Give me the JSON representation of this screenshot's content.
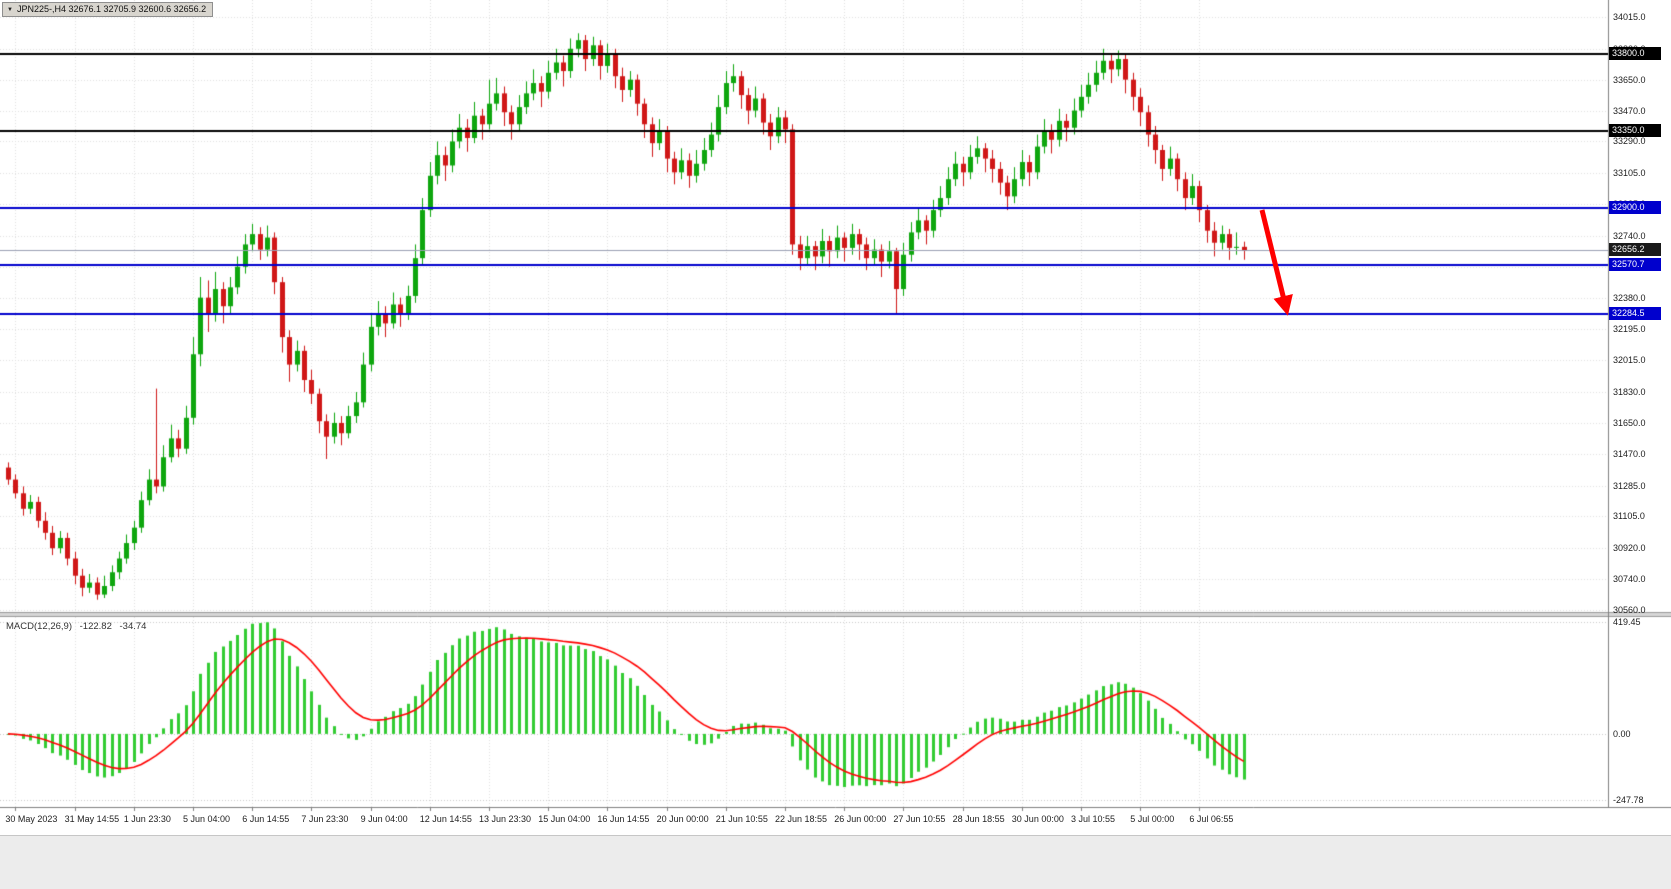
{
  "header": {
    "symbol_info": "JPN225-,H4  32676.1 32705.9 32600.6 32656.2"
  },
  "chart_data": {
    "type": "candlestick",
    "symbol": "JPN225-",
    "timeframe": "H4",
    "current_bar": {
      "open": 32676.1,
      "high": 32705.9,
      "low": 32600.6,
      "close": 32656.2
    },
    "y_axis_ticks": [
      34015,
      33830,
      33650,
      33470,
      33290,
      33105,
      32925,
      32740,
      32560,
      32380,
      32195,
      32015,
      31830,
      31650,
      31470,
      31285,
      31105,
      30920,
      30740,
      30560
    ],
    "x_axis_labels": [
      "30 May 2023",
      "31 May 14:55",
      "1 Jun 23:30",
      "5 Jun 04:00",
      "6 Jun 14:55",
      "7 Jun 23:30",
      "9 Jun 04:00",
      "12 Jun 14:55",
      "13 Jun 23:30",
      "15 Jun 04:00",
      "16 Jun 14:55",
      "20 Jun 00:00",
      "21 Jun 10:55",
      "22 Jun 18:55",
      "26 Jun 00:00",
      "27 Jun 10:55",
      "28 Jun 18:55",
      "30 Jun 00:00",
      "3 Jul 10:55",
      "5 Jul 00:00",
      "6 Jul 06:55"
    ],
    "levels": [
      {
        "value": 33800.0,
        "color": "#000000"
      },
      {
        "value": 33350.0,
        "color": "#000000"
      },
      {
        "value": 32900.0,
        "color": "#0000cd"
      },
      {
        "value": 32570.7,
        "color": "#0000cd"
      },
      {
        "value": 32284.5,
        "color": "#0000cd"
      }
    ],
    "current_price": {
      "value": 32656.2,
      "label": "32656.2"
    },
    "candles": [
      [
        31390,
        31420,
        31290,
        31320
      ],
      [
        31320,
        31350,
        31210,
        31240
      ],
      [
        31240,
        31280,
        31110,
        31150
      ],
      [
        31150,
        31230,
        31120,
        31190
      ],
      [
        31190,
        31220,
        31040,
        31080
      ],
      [
        31080,
        31130,
        30970,
        31010
      ],
      [
        31010,
        31050,
        30880,
        30920
      ],
      [
        30920,
        31020,
        30890,
        30980
      ],
      [
        30980,
        31010,
        30820,
        30860
      ],
      [
        30860,
        30900,
        30710,
        30760
      ],
      [
        30760,
        30800,
        30640,
        30690
      ],
      [
        30690,
        30770,
        30660,
        30720
      ],
      [
        30720,
        30750,
        30620,
        30650
      ],
      [
        30650,
        30760,
        30630,
        30700
      ],
      [
        30700,
        30820,
        30670,
        30780
      ],
      [
        30780,
        30900,
        30740,
        30860
      ],
      [
        30860,
        31000,
        30830,
        30950
      ],
      [
        30950,
        31080,
        30910,
        31040
      ],
      [
        31040,
        31250,
        31010,
        31200
      ],
      [
        31200,
        31380,
        31170,
        31320
      ],
      [
        31320,
        31850,
        31240,
        31280
      ],
      [
        31280,
        31520,
        31250,
        31450
      ],
      [
        31450,
        31640,
        31420,
        31560
      ],
      [
        31560,
        31610,
        31450,
        31500
      ],
      [
        31500,
        31750,
        31470,
        31680
      ],
      [
        31680,
        32150,
        31640,
        32050
      ],
      [
        32050,
        32500,
        31980,
        32380
      ],
      [
        32380,
        32480,
        32180,
        32290
      ],
      [
        32290,
        32530,
        32240,
        32430
      ],
      [
        32430,
        32470,
        32230,
        32330
      ],
      [
        32330,
        32500,
        32290,
        32440
      ],
      [
        32440,
        32620,
        32400,
        32560
      ],
      [
        32560,
        32750,
        32520,
        32690
      ],
      [
        32690,
        32810,
        32650,
        32750
      ],
      [
        32750,
        32790,
        32600,
        32660
      ],
      [
        32660,
        32800,
        32620,
        32730
      ],
      [
        32730,
        32760,
        32400,
        32470
      ],
      [
        32470,
        32500,
        32060,
        32150
      ],
      [
        32150,
        32190,
        31890,
        31990
      ],
      [
        31990,
        32130,
        31950,
        32070
      ],
      [
        32070,
        32100,
        31830,
        31900
      ],
      [
        31900,
        31960,
        31760,
        31820
      ],
      [
        31820,
        31850,
        31590,
        31660
      ],
      [
        31660,
        31700,
        31440,
        31570
      ],
      [
        31570,
        31710,
        31530,
        31650
      ],
      [
        31650,
        31690,
        31520,
        31590
      ],
      [
        31590,
        31750,
        31560,
        31690
      ],
      [
        31690,
        31830,
        31650,
        31770
      ],
      [
        31770,
        32060,
        31740,
        31990
      ],
      [
        31990,
        32290,
        31950,
        32210
      ],
      [
        32210,
        32360,
        32160,
        32290
      ],
      [
        32290,
        32330,
        32150,
        32230
      ],
      [
        32230,
        32410,
        32200,
        32340
      ],
      [
        32340,
        32380,
        32210,
        32290
      ],
      [
        32290,
        32450,
        32250,
        32390
      ],
      [
        32390,
        32690,
        32350,
        32610
      ],
      [
        32610,
        32960,
        32570,
        32890
      ],
      [
        32890,
        33170,
        32850,
        33090
      ],
      [
        33090,
        33290,
        33040,
        33210
      ],
      [
        33210,
        33260,
        33060,
        33150
      ],
      [
        33150,
        33360,
        33110,
        33290
      ],
      [
        33290,
        33450,
        33250,
        33370
      ],
      [
        33370,
        33420,
        33230,
        33310
      ],
      [
        33310,
        33520,
        33280,
        33440
      ],
      [
        33440,
        33480,
        33300,
        33390
      ],
      [
        33390,
        33650,
        33360,
        33510
      ],
      [
        33510,
        33660,
        33470,
        33570
      ],
      [
        33570,
        33610,
        33380,
        33460
      ],
      [
        33460,
        33500,
        33300,
        33390
      ],
      [
        33390,
        33560,
        33350,
        33490
      ],
      [
        33490,
        33640,
        33450,
        33570
      ],
      [
        33570,
        33710,
        33530,
        33630
      ],
      [
        33630,
        33670,
        33490,
        33580
      ],
      [
        33580,
        33760,
        33540,
        33690
      ],
      [
        33690,
        33830,
        33650,
        33750
      ],
      [
        33750,
        33790,
        33610,
        33700
      ],
      [
        33700,
        33890,
        33660,
        33830
      ],
      [
        33830,
        33920,
        33780,
        33880
      ],
      [
        33880,
        33910,
        33700,
        33770
      ],
      [
        33770,
        33900,
        33730,
        33850
      ],
      [
        33850,
        33880,
        33650,
        33730
      ],
      [
        33730,
        33860,
        33690,
        33800
      ],
      [
        33800,
        33830,
        33600,
        33670
      ],
      [
        33670,
        33720,
        33520,
        33590
      ],
      [
        33590,
        33700,
        33550,
        33650
      ],
      [
        33650,
        33680,
        33440,
        33510
      ],
      [
        33510,
        33540,
        33310,
        33390
      ],
      [
        33390,
        33430,
        33200,
        33280
      ],
      [
        33280,
        33420,
        33240,
        33350
      ],
      [
        33350,
        33380,
        33110,
        33190
      ],
      [
        33190,
        33230,
        33040,
        33110
      ],
      [
        33110,
        33250,
        33070,
        33180
      ],
      [
        33180,
        33220,
        33020,
        33090
      ],
      [
        33090,
        33240,
        33050,
        33160
      ],
      [
        33160,
        33310,
        33120,
        33240
      ],
      [
        33240,
        33400,
        33200,
        33330
      ],
      [
        33330,
        33560,
        33290,
        33490
      ],
      [
        33490,
        33700,
        33450,
        33630
      ],
      [
        33630,
        33740,
        33580,
        33670
      ],
      [
        33670,
        33700,
        33480,
        33560
      ],
      [
        33560,
        33600,
        33390,
        33470
      ],
      [
        33470,
        33610,
        33430,
        33540
      ],
      [
        33540,
        33570,
        33330,
        33400
      ],
      [
        33400,
        33450,
        33240,
        33320
      ],
      [
        33320,
        33490,
        33280,
        33430
      ],
      [
        33430,
        33470,
        33280,
        33360
      ],
      [
        33360,
        33390,
        32630,
        32690
      ],
      [
        32690,
        32740,
        32540,
        32610
      ],
      [
        32610,
        32740,
        32570,
        32680
      ],
      [
        32680,
        32710,
        32540,
        32620
      ],
      [
        32620,
        32780,
        32580,
        32710
      ],
      [
        32710,
        32740,
        32560,
        32650
      ],
      [
        32650,
        32800,
        32610,
        32730
      ],
      [
        32730,
        32760,
        32590,
        32670
      ],
      [
        32670,
        32810,
        32630,
        32750
      ],
      [
        32750,
        32780,
        32600,
        32690
      ],
      [
        32690,
        32730,
        32540,
        32610
      ],
      [
        32610,
        32720,
        32570,
        32660
      ],
      [
        32660,
        32690,
        32500,
        32590
      ],
      [
        32590,
        32710,
        32550,
        32650
      ],
      [
        32650,
        32670,
        32280,
        32430
      ],
      [
        32430,
        32700,
        32390,
        32630
      ],
      [
        32630,
        32820,
        32590,
        32760
      ],
      [
        32760,
        32900,
        32720,
        32830
      ],
      [
        32830,
        32860,
        32690,
        32770
      ],
      [
        32770,
        32950,
        32730,
        32890
      ],
      [
        32890,
        33030,
        32850,
        32960
      ],
      [
        32960,
        33140,
        32920,
        33070
      ],
      [
        33070,
        33230,
        33030,
        33160
      ],
      [
        33160,
        33200,
        33030,
        33110
      ],
      [
        33110,
        33270,
        33070,
        33200
      ],
      [
        33200,
        33320,
        33160,
        33250
      ],
      [
        33250,
        33280,
        33110,
        33190
      ],
      [
        33190,
        33240,
        33050,
        33130
      ],
      [
        33130,
        33170,
        32980,
        33050
      ],
      [
        33050,
        33090,
        32890,
        32970
      ],
      [
        32970,
        33140,
        32930,
        33070
      ],
      [
        33070,
        33240,
        33030,
        33170
      ],
      [
        33170,
        33210,
        33030,
        33110
      ],
      [
        33110,
        33330,
        33070,
        33260
      ],
      [
        33260,
        33420,
        33220,
        33350
      ],
      [
        33350,
        33390,
        33220,
        33300
      ],
      [
        33300,
        33480,
        33260,
        33410
      ],
      [
        33410,
        33450,
        33290,
        33370
      ],
      [
        33370,
        33540,
        33330,
        33470
      ],
      [
        33470,
        33620,
        33430,
        33550
      ],
      [
        33550,
        33690,
        33510,
        33620
      ],
      [
        33620,
        33760,
        33580,
        33690
      ],
      [
        33690,
        33830,
        33650,
        33760
      ],
      [
        33760,
        33800,
        33630,
        33710
      ],
      [
        33710,
        33820,
        33670,
        33770
      ],
      [
        33770,
        33800,
        33570,
        33650
      ],
      [
        33650,
        33690,
        33470,
        33550
      ],
      [
        33550,
        33600,
        33380,
        33460
      ],
      [
        33460,
        33500,
        33260,
        33330
      ],
      [
        33330,
        33380,
        33160,
        33240
      ],
      [
        33240,
        33270,
        33060,
        33130
      ],
      [
        33130,
        33260,
        33090,
        33190
      ],
      [
        33190,
        33220,
        33000,
        33070
      ],
      [
        33070,
        33110,
        32890,
        32960
      ],
      [
        32960,
        33100,
        32920,
        33030
      ],
      [
        33030,
        33060,
        32820,
        32890
      ],
      [
        32890,
        32920,
        32700,
        32770
      ],
      [
        32770,
        32820,
        32620,
        32700
      ],
      [
        32700,
        32800,
        32660,
        32750
      ],
      [
        32750,
        32780,
        32600,
        32670
      ],
      [
        32670,
        32760,
        32630,
        32676
      ],
      [
        32676,
        32706,
        32601,
        32656
      ]
    ],
    "macd": {
      "title": "MACD(12,26,9)",
      "value_main": "-122.82",
      "value_signal": "-34.74",
      "params": {
        "fast": 12,
        "slow": 26,
        "signal": 9
      },
      "axis_ticks": [
        "419.45",
        "0.00",
        "-247.78"
      ],
      "axis_values": [
        419.45,
        0.0,
        -247.78
      ]
    },
    "colors": {
      "background": "#ffffff",
      "grid": "#e0e0e0",
      "candle_up": "#0ea60e",
      "candle_down": "#d01717",
      "current_line": "#9aA0b4",
      "macd_hist": "#33cc33",
      "macd_signal": "#ff0000",
      "frame": "#808080"
    }
  },
  "annotation": {
    "type": "arrow-down",
    "color": "#ff0000"
  }
}
